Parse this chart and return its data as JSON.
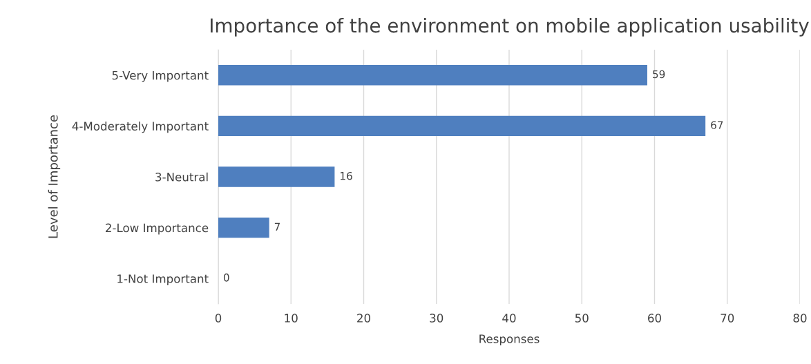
{
  "chart_data": {
    "type": "bar",
    "orientation": "horizontal",
    "title": "Importance of the environment on mobile application usability",
    "xlabel": "Responses",
    "ylabel": "Level of Importance",
    "categories": [
      "5-Very Important",
      "4-Moderately Important",
      "3-Neutral",
      "2-Low Importance",
      "1-Not Important"
    ],
    "values": [
      59,
      67,
      16,
      7,
      0
    ],
    "color": "#4f7fbf",
    "xlim": [
      0,
      80
    ],
    "xticks": [
      0,
      10,
      20,
      30,
      40,
      50,
      60,
      70,
      80
    ],
    "grid": "x",
    "data_labels": true
  }
}
